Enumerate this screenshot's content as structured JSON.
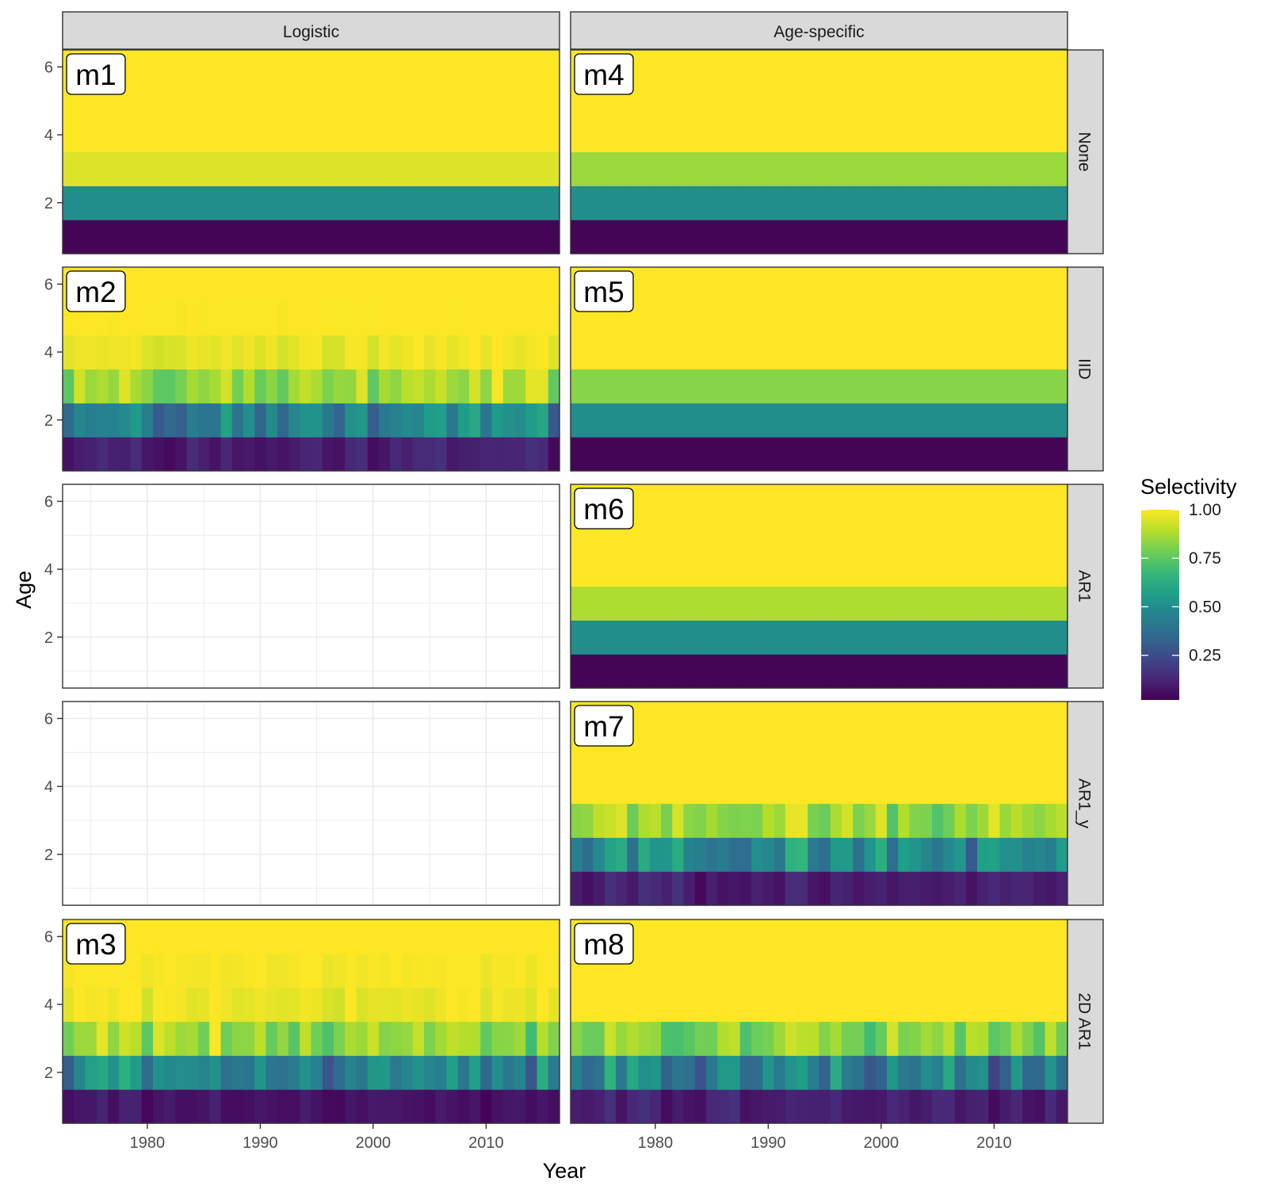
{
  "chart_data": {
    "type": "heatmap",
    "title": "",
    "xlabel": "Year",
    "ylabel": "Age",
    "x_ticks": [
      "1980",
      "1990",
      "2000",
      "2010"
    ],
    "x_tick_values": [
      1980,
      1990,
      2000,
      2010
    ],
    "y_ticks": [
      "2",
      "4",
      "6"
    ],
    "y_tick_values": [
      2,
      4,
      6
    ],
    "xlim": [
      1972.5,
      2016.5
    ],
    "ylim": [
      0.5,
      6.5
    ],
    "years": [
      1973,
      1974,
      1975,
      1976,
      1977,
      1978,
      1979,
      1980,
      1981,
      1982,
      1983,
      1984,
      1985,
      1986,
      1987,
      1988,
      1989,
      1990,
      1991,
      1992,
      1993,
      1994,
      1995,
      1996,
      1997,
      1998,
      1999,
      2000,
      2001,
      2002,
      2003,
      2004,
      2005,
      2006,
      2007,
      2008,
      2009,
      2010,
      2011,
      2012,
      2013,
      2014,
      2015,
      2016
    ],
    "ages": [
      1,
      2,
      3,
      4,
      5,
      6
    ],
    "column_strips": [
      "Logistic",
      "Age-specific"
    ],
    "row_strips": [
      "None",
      "IID",
      "AR1",
      "AR1_y",
      "2D AR1"
    ],
    "legend": {
      "title": "Selectivity",
      "labels": [
        "1.00",
        "0.75",
        "0.50",
        "0.25"
      ],
      "values": [
        1.0,
        0.75,
        0.5,
        0.25
      ],
      "range": [
        0.02,
        1.0
      ],
      "position": "right"
    },
    "colormap": [
      "#440154",
      "#482878",
      "#3e4989",
      "#31688e",
      "#26828e",
      "#1f9e89",
      "#35b779",
      "#6ece58",
      "#b5de2b",
      "#fde725"
    ],
    "panels": [
      {
        "label": "m1",
        "row": 0,
        "col": 0,
        "mode": "constant",
        "age_means": [
          0.03,
          0.5,
          0.95,
          1.0,
          1.0,
          1.0
        ]
      },
      {
        "label": "m4",
        "row": 0,
        "col": 1,
        "mode": "constant",
        "age_means": [
          0.03,
          0.5,
          0.85,
          1.0,
          1.0,
          1.0
        ]
      },
      {
        "label": "m2",
        "row": 1,
        "col": 0,
        "mode": "varying",
        "seed": 11,
        "age_means": [
          0.1,
          0.45,
          0.85,
          0.97,
          1.0,
          1.0
        ],
        "age_sd": [
          0.06,
          0.18,
          0.14,
          0.04,
          0.01,
          0.0
        ]
      },
      {
        "label": "m5",
        "row": 1,
        "col": 1,
        "mode": "constant",
        "age_means": [
          0.03,
          0.5,
          0.82,
          1.0,
          1.0,
          1.0
        ]
      },
      {
        "label": "",
        "row": 2,
        "col": 0,
        "mode": "empty"
      },
      {
        "label": "m6",
        "row": 2,
        "col": 1,
        "mode": "constant",
        "age_means": [
          0.03,
          0.5,
          0.88,
          1.0,
          1.0,
          1.0
        ]
      },
      {
        "label": "",
        "row": 3,
        "col": 0,
        "mode": "empty"
      },
      {
        "label": "m7",
        "row": 3,
        "col": 1,
        "mode": "varying",
        "seed": 29,
        "age_means": [
          0.1,
          0.5,
          0.85,
          1.0,
          1.0,
          1.0
        ],
        "age_sd": [
          0.06,
          0.2,
          0.14,
          0.0,
          0.0,
          0.0
        ]
      },
      {
        "label": "m3",
        "row": 4,
        "col": 0,
        "mode": "varying",
        "seed": 47,
        "age_means": [
          0.07,
          0.45,
          0.85,
          0.97,
          0.99,
          1.0
        ],
        "age_sd": [
          0.04,
          0.18,
          0.14,
          0.05,
          0.02,
          0.0
        ]
      },
      {
        "label": "m8",
        "row": 4,
        "col": 1,
        "mode": "varying",
        "seed": 63,
        "age_means": [
          0.1,
          0.45,
          0.82,
          1.0,
          1.0,
          1.0
        ],
        "age_sd": [
          0.06,
          0.2,
          0.14,
          0.0,
          0.0,
          0.0
        ]
      }
    ]
  }
}
